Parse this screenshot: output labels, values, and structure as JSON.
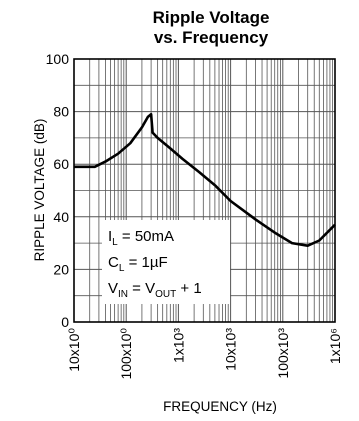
{
  "chart_data": {
    "type": "line",
    "title_line1": "Ripple Voltage",
    "title_line2": "vs. Frequency",
    "xlabel": "FREQUENCY (Hz)",
    "ylabel": "RIPPLE VOLTAGE (dB)",
    "x_scale": "log",
    "xlim": [
      10,
      1000000
    ],
    "ylim": [
      0,
      100
    ],
    "grid": true,
    "y_ticks": [
      0,
      20,
      40,
      60,
      80,
      100
    ],
    "y_tick_labels": [
      "0",
      "20",
      "40",
      "60",
      "80",
      "100"
    ],
    "x_ticks": [
      10,
      100,
      1000,
      10000,
      100000,
      1000000
    ],
    "x_tick_labels": [
      "10x10⁰",
      "100x10⁰",
      "1x10³",
      "10x10³",
      "100x10³",
      "1x10⁶"
    ],
    "series": [
      {
        "color": "#000000",
        "x": [
          10,
          25,
          40,
          70,
          120,
          200,
          260,
          300,
          320,
          400,
          700,
          1200,
          2500,
          5000,
          10000,
          30000,
          70000,
          150000,
          300000,
          500000,
          1000000
        ],
        "y": [
          59,
          59,
          61,
          64,
          68,
          74,
          78,
          79,
          72,
          70,
          66,
          62,
          57,
          52,
          46,
          39,
          34,
          30,
          29,
          31,
          37
        ]
      }
    ],
    "annotation": {
      "line1": {
        "main": "I",
        "sub": "L",
        "rest": " = 50mA"
      },
      "line2": {
        "main": "C",
        "sub": "L",
        "rest": " = 1µF"
      },
      "line3": {
        "main1": "V",
        "sub1": "IN",
        "mid": " = V",
        "sub2": "OUT",
        "rest": " + 1"
      }
    }
  }
}
